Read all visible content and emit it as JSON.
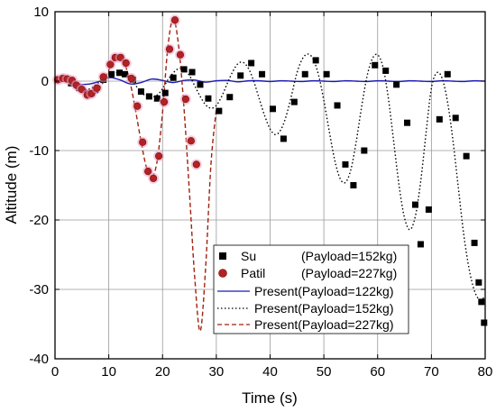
{
  "chart_data": {
    "type": "scatter",
    "xlabel": "Time (s)",
    "ylabel": "Altitude (m)",
    "xlim": [
      0,
      80
    ],
    "ylim": [
      -40,
      10
    ],
    "x_ticks": [
      0,
      10,
      20,
      30,
      40,
      50,
      60,
      70,
      80
    ],
    "y_ticks": [
      10,
      0,
      -10,
      -20,
      -30,
      -40
    ],
    "grid": true,
    "legend_position": "bottom-center",
    "series": [
      {
        "name": "Su",
        "label": "Su",
        "payload": "(Payload=152kg)",
        "kind": "scatter",
        "marker": "square",
        "color": "#000000",
        "x": [
          0.5,
          1.5,
          3,
          4.5,
          6,
          7.5,
          9,
          10.5,
          12,
          13,
          14.5,
          16,
          17.5,
          19,
          20.5,
          22,
          24,
          25.5,
          27,
          28.5,
          30.5,
          32.5,
          34.5,
          36.5,
          38.5,
          40.5,
          42.5,
          44.5,
          46.5,
          48.5,
          50.5,
          52.5,
          54,
          55.5,
          57.5,
          59.5,
          61.5,
          63.5,
          65.5,
          67,
          68,
          69.5,
          71.5,
          73,
          74.5,
          76.5,
          78,
          78.8,
          79.3,
          79.8
        ],
        "y": [
          0.2,
          0.4,
          -0.3,
          -1.0,
          -1.7,
          -1.3,
          0.2,
          1.0,
          1.2,
          1.0,
          0.2,
          -1.5,
          -2.2,
          -2.5,
          -1.7,
          0.5,
          1.7,
          1.3,
          -0.5,
          -2.5,
          -4.3,
          -2.3,
          0.8,
          2.6,
          1.0,
          -4.0,
          -8.3,
          -3.0,
          1.0,
          3.0,
          1.0,
          -3.5,
          -12.0,
          -15.0,
          -10.0,
          2.3,
          1.5,
          -0.5,
          -6.0,
          -17.8,
          -23.5,
          -18.5,
          -5.5,
          1.0,
          -5.3,
          -10.8,
          -23.3,
          -29.0,
          -31.8,
          -34.8
        ]
      },
      {
        "name": "Patil",
        "label": "Patil",
        "payload": "(Payload=227kg)",
        "kind": "scatter",
        "marker": "circle",
        "color": "#b22222",
        "x": [
          0.5,
          1.5,
          2.3,
          3.2,
          4.0,
          5.0,
          6.0,
          6.8,
          7.8,
          9.0,
          10.3,
          11.2,
          12.2,
          13.2,
          14.2,
          15.3,
          16.3,
          17.3,
          18.3,
          19.3,
          20.3,
          21.3,
          22.3,
          23.3,
          24.3,
          25.3,
          26.3
        ],
        "y": [
          0.2,
          0.4,
          0.3,
          0.1,
          -0.6,
          -1.2,
          -2.0,
          -1.8,
          -1.0,
          0.6,
          2.4,
          3.4,
          3.4,
          2.6,
          0.4,
          -3.6,
          -8.8,
          -13.0,
          -14.0,
          -10.8,
          -3.0,
          4.6,
          8.8,
          3.8,
          -2.6,
          -8.6,
          -12.0
        ]
      },
      {
        "name": "Present(Payload=122kg)",
        "label": "Present(Payload=122kg)",
        "kind": "line",
        "line_style": "solid",
        "color": "#1c1cb4",
        "x": [
          0,
          2,
          4,
          6,
          8,
          10,
          12,
          14,
          16,
          18,
          20,
          22,
          24,
          26,
          28,
          30,
          32,
          34,
          36,
          38,
          40,
          42,
          44,
          46,
          48,
          50,
          52,
          54,
          56,
          58,
          60,
          62,
          64,
          66,
          68,
          70,
          72,
          74,
          76,
          78,
          80
        ],
        "y": [
          0,
          0.15,
          -0.4,
          -0.45,
          -0.1,
          0.5,
          0.2,
          -0.4,
          -0.2,
          0.3,
          0.1,
          -0.2,
          0.1,
          0.15,
          -0.15,
          0.05,
          0.1,
          -0.1,
          0.05,
          0.05,
          -0.05,
          0.05,
          0.0,
          -0.05,
          0.05,
          0.0,
          -0.05,
          0.05,
          0.0,
          -0.05,
          0.05,
          0.0,
          -0.05,
          0.05,
          0.0,
          -0.05,
          0.05,
          0.0,
          -0.05,
          0.05,
          0.0
        ]
      },
      {
        "name": "Present(Payload=152kg)",
        "label": "Present(Payload=152kg)",
        "kind": "line",
        "line_style": "dotted",
        "color": "#000000",
        "x": [
          0,
          2,
          4,
          6,
          8,
          10,
          12,
          14,
          16,
          17,
          18,
          19,
          20,
          21,
          22,
          23,
          24,
          25,
          26,
          27,
          28,
          29,
          30,
          31,
          32,
          33,
          34,
          35,
          36,
          37,
          38,
          39,
          40,
          41,
          42,
          43,
          44,
          45,
          46,
          47,
          48,
          49,
          50,
          51,
          52,
          53,
          54,
          55,
          56,
          57,
          58,
          59,
          60,
          61,
          62,
          63,
          64,
          65,
          66,
          67,
          68,
          69,
          70,
          71,
          72,
          73,
          74,
          75,
          76,
          77,
          78,
          79,
          80
        ],
        "y": [
          0,
          0.2,
          -0.6,
          -1.2,
          -0.3,
          0.9,
          1.2,
          0.3,
          -1.6,
          -2.1,
          -2.3,
          -2.0,
          -1.1,
          0.2,
          1.2,
          1.8,
          1.7,
          0.8,
          -0.7,
          -2.2,
          -3.4,
          -3.9,
          -3.5,
          -2.2,
          -0.4,
          1.3,
          2.5,
          2.7,
          1.8,
          -0.1,
          -2.6,
          -5.0,
          -6.9,
          -7.7,
          -7.0,
          -5.0,
          -2.0,
          1.2,
          3.2,
          3.9,
          3.2,
          0.9,
          -2.8,
          -7.2,
          -11.3,
          -14.0,
          -14.6,
          -12.8,
          -8.8,
          -3.8,
          0.6,
          3.2,
          3.8,
          2.0,
          -2.5,
          -8.8,
          -15.1,
          -19.7,
          -21.4,
          -19.5,
          -14.5,
          -7.5,
          -1.0,
          1.2,
          0.4,
          -3.0,
          -8.5,
          -15.3,
          -22.0,
          -27.0,
          -30.2,
          -31.5,
          -31.0
        ]
      },
      {
        "name": "Present(Payload=227kg)",
        "label": "Present(Payload=227kg)",
        "kind": "line",
        "line_style": "dashed",
        "color": "#a0220e",
        "x": [
          0,
          1,
          2,
          3,
          4,
          5,
          6,
          7,
          8,
          9,
          10,
          11,
          12,
          13,
          14,
          15,
          16,
          17,
          18,
          19,
          20,
          21,
          22,
          23,
          24,
          25,
          26,
          27,
          28,
          29,
          30
        ],
        "y": [
          0,
          0.3,
          0.4,
          0.1,
          -0.5,
          -1.2,
          -1.8,
          -1.9,
          -1.3,
          -0.1,
          1.6,
          3.0,
          3.4,
          2.4,
          -0.3,
          -4.3,
          -8.7,
          -12.4,
          -13.8,
          -11.5,
          -4.5,
          5.0,
          9.0,
          5.0,
          -4.0,
          -16.0,
          -28.5,
          -36.0,
          -27.0,
          -12.0,
          -4.0
        ]
      }
    ]
  }
}
